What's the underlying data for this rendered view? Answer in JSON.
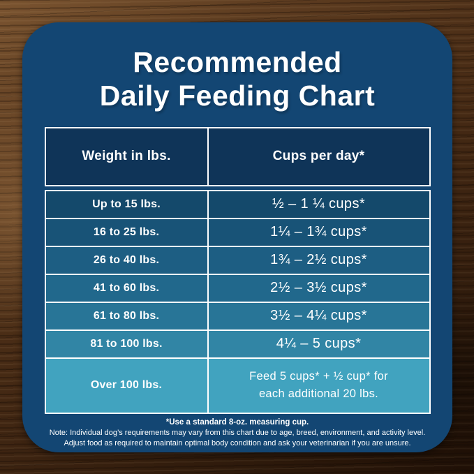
{
  "chart_data": {
    "type": "table",
    "title": "Recommended Daily Feeding Chart",
    "columns": [
      "Weight in lbs.",
      "Cups per day*"
    ],
    "rows": [
      {
        "weight": "Up to 15 lbs.",
        "cups": "½ – 1 ¼ cups*"
      },
      {
        "weight": "16 to 25 lbs.",
        "cups": "1¼ – 1¾ cups*"
      },
      {
        "weight": "26 to 40 lbs.",
        "cups": "1¾ – 2½ cups*"
      },
      {
        "weight": "41 to 60 lbs.",
        "cups": "2½ – 3½ cups*"
      },
      {
        "weight": "61 to 80 lbs.",
        "cups": "3½ – 4¼ cups*"
      },
      {
        "weight": "81 to 100 lbs.",
        "cups": "4¼ – 5 cups*"
      },
      {
        "weight": "Over 100 lbs.",
        "cups": "Feed 5 cups* + ½ cup* for each additional 20 lbs.",
        "cups_line1": "Feed 5 cups* + ½ cup* for",
        "cups_line2": "each additional 20 lbs."
      }
    ],
    "footnotes": [
      "*Use a standard 8-oz. measuring cup.",
      "Note: Individual dog’s requirements may vary from this chart due to age, breed, environment, and activity level.",
      "Adjust food as required to maintain optimal body condition and ask your veterinarian if you are unsure."
    ],
    "legend_position": "none",
    "grid": "white cell borders"
  },
  "title": {
    "line1": "Recommended",
    "line2": "Daily Feeding Chart"
  },
  "header": {
    "weight": "Weight in lbs.",
    "cups": "Cups per day*"
  },
  "colors": {
    "card": "#134673",
    "header_row": "#0f3458",
    "row_colors": [
      "#14496b",
      "#185377",
      "#1d5e83",
      "#21688c",
      "#287597",
      "#3185a5",
      "#41a3bf"
    ],
    "table_border": "#ffffff",
    "text": "#ffffff"
  }
}
